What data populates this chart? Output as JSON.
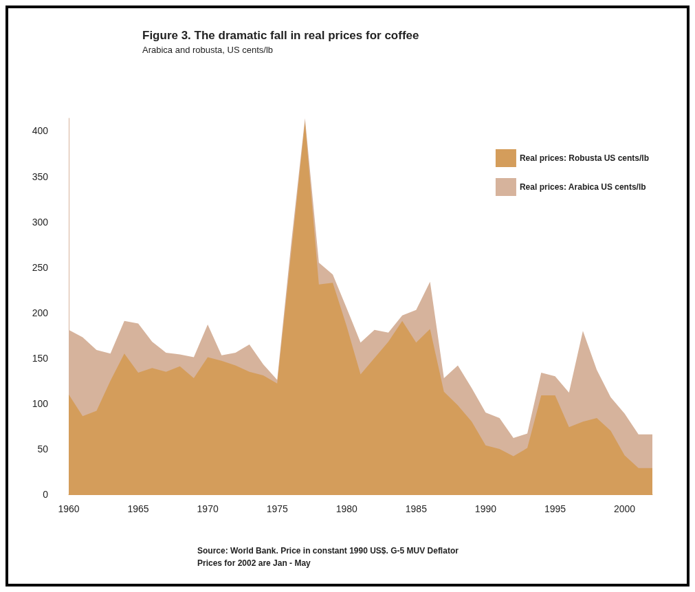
{
  "chart_data": {
    "type": "area",
    "title": "Figure 3. The dramatic fall in real prices for coffee",
    "subtitle": "Arabica and robusta, US cents/lb",
    "x": [
      1960,
      1961,
      1962,
      1963,
      1964,
      1965,
      1966,
      1967,
      1968,
      1969,
      1970,
      1971,
      1972,
      1973,
      1974,
      1975,
      1976,
      1977,
      1978,
      1979,
      1980,
      1981,
      1982,
      1983,
      1984,
      1985,
      1986,
      1987,
      1988,
      1989,
      1990,
      1991,
      1992,
      1993,
      1994,
      1995,
      1996,
      1997,
      1998,
      1999,
      2000,
      2001,
      2002
    ],
    "series": [
      {
        "name": "Real prices: Robusta US cents/lb",
        "color": "#d49d5b",
        "values": [
          110,
          86,
          92,
          125,
          155,
          134,
          139,
          135,
          141,
          128,
          151,
          147,
          142,
          135,
          131,
          122,
          265,
          410,
          231,
          233,
          185,
          132,
          150,
          168,
          191,
          167,
          182,
          113,
          98,
          80,
          54,
          50,
          42,
          51,
          109,
          109,
          74,
          80,
          84,
          70,
          43,
          29,
          29
        ]
      },
      {
        "name": "Real prices: Arabica US cents/lb",
        "color": "#d6b39c",
        "values": [
          181,
          173,
          159,
          155,
          191,
          188,
          168,
          156,
          154,
          151,
          187,
          153,
          156,
          165,
          143,
          126,
          275,
          414,
          255,
          242,
          205,
          167,
          181,
          178,
          197,
          203,
          234,
          128,
          142,
          117,
          90,
          84,
          62,
          67,
          134,
          130,
          112,
          180,
          137,
          107,
          89,
          66,
          66
        ]
      }
    ],
    "xlim": [
      1960,
      2002
    ],
    "xticks": [
      1960,
      1965,
      1970,
      1975,
      1980,
      1985,
      1990,
      1995,
      2000
    ],
    "ylim": [
      0,
      414
    ],
    "yticks": [
      0,
      50,
      100,
      150,
      200,
      250,
      300,
      350,
      400
    ],
    "grid": false,
    "legend": "top right",
    "annotations": [
      "Source: World Bank. Price in constant 1990 US$. G-5 MUV Deflator",
      "Prices for 2002 are Jan - May"
    ]
  }
}
